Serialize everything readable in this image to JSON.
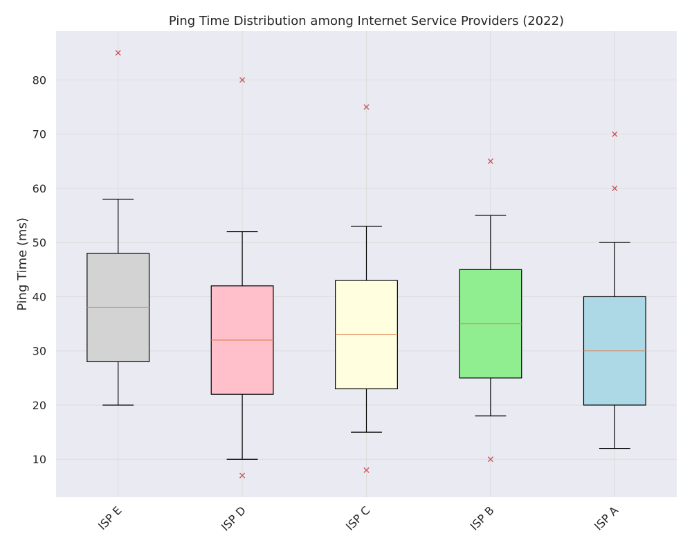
{
  "chart_data": {
    "type": "boxplot",
    "title": "Ping Time Distribution among Internet Service Providers (2022)",
    "xlabel": "",
    "ylabel": "Ping Time (ms)",
    "ylim": [
      3,
      89
    ],
    "yticks": [
      10,
      20,
      30,
      40,
      50,
      60,
      70,
      80
    ],
    "grid": true,
    "background_color": "#eaeaf2",
    "grid_color": "#dcdcdc",
    "median_color": "#dd8452",
    "outlier_color": "#c44e52",
    "categories": [
      "ISP E",
      "ISP D",
      "ISP C",
      "ISP B",
      "ISP A"
    ],
    "boxes": [
      {
        "label": "ISP E",
        "whisker_low": 20,
        "q1": 28,
        "median": 38,
        "q3": 48,
        "whisker_high": 58,
        "outliers": [
          85
        ],
        "color": "#d3d3d3"
      },
      {
        "label": "ISP D",
        "whisker_low": 10,
        "q1": 22,
        "median": 32,
        "q3": 42,
        "whisker_high": 52,
        "outliers": [
          7,
          80
        ],
        "color": "#ffc0cb"
      },
      {
        "label": "ISP C",
        "whisker_low": 15,
        "q1": 23,
        "median": 33,
        "q3": 43,
        "whisker_high": 53,
        "outliers": [
          8,
          75
        ],
        "color": "#ffffe0"
      },
      {
        "label": "ISP B",
        "whisker_low": 18,
        "q1": 25,
        "median": 35,
        "q3": 45,
        "whisker_high": 55,
        "outliers": [
          10,
          65
        ],
        "color": "#90ee90"
      },
      {
        "label": "ISP A",
        "whisker_low": 12,
        "q1": 20,
        "median": 30,
        "q3": 40,
        "whisker_high": 50,
        "outliers": [
          60,
          70
        ],
        "color": "#add8e6"
      }
    ]
  }
}
